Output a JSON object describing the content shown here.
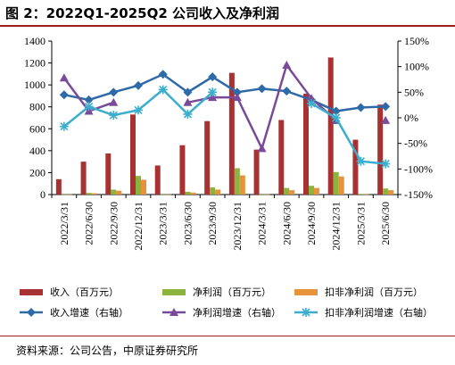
{
  "figure_title": "图 2：2022Q1-2025Q2 公司收入及净利润",
  "source": "资料来源：公司公告，中原证券研究所",
  "chart_data": {
    "type": "bar",
    "categories": [
      "2022/3/31",
      "2022/6/30",
      "2022/9/30",
      "2022/12/31",
      "2023/3/31",
      "2023/6/30",
      "2023/9/30",
      "2023/12/31",
      "2024/3/31",
      "2024/6/30",
      "2024/9/30",
      "2024/12/31",
      "2025/3/31",
      "2025/6/30"
    ],
    "left_axis": {
      "ylim": [
        0,
        1400
      ],
      "ticks": [
        0,
        200,
        400,
        600,
        800,
        1000,
        1200,
        1400
      ]
    },
    "right_axis": {
      "ylim": [
        -150,
        150
      ],
      "ticks": [
        -150,
        -100,
        -50,
        0,
        50,
        100,
        150
      ],
      "unit": "%",
      "tick_labels": [
        "-150%",
        "-100%",
        "-50%",
        "0%",
        "50%",
        "100%",
        "150%"
      ]
    },
    "bar_series": [
      {
        "name": "收入（百万元）",
        "color": "#a83232",
        "axis": "left",
        "values": [
          140,
          300,
          375,
          730,
          265,
          450,
          670,
          1110,
          410,
          680,
          920,
          1250,
          500,
          820
        ]
      },
      {
        "name": "净利润（百万元）",
        "color": "#8cb43c",
        "axis": "left",
        "values": [
          2,
          15,
          45,
          170,
          2,
          25,
          65,
          240,
          2,
          60,
          80,
          205,
          5,
          55
        ]
      },
      {
        "name": "扣非净利润（百万元）",
        "color": "#e8923c",
        "axis": "left",
        "values": [
          2,
          12,
          35,
          135,
          2,
          18,
          45,
          175,
          2,
          40,
          60,
          165,
          3,
          40
        ]
      }
    ],
    "line_series": [
      {
        "name": "收入增速（右轴）",
        "color": "#2e6aa8",
        "marker": "diamond",
        "axis": "right",
        "values": [
          45,
          35,
          50,
          63,
          85,
          50,
          80,
          50,
          57,
          52,
          35,
          13,
          20,
          22
        ]
      },
      {
        "name": "净利润增速（右轴）",
        "color": "#7a4a9a",
        "marker": "triangle",
        "axis": "right",
        "values": [
          78,
          13,
          30,
          null,
          null,
          30,
          40,
          40,
          -60,
          103,
          38,
          -5,
          null,
          -5
        ]
      },
      {
        "name": "扣非净利润增速（右轴）",
        "color": "#3aaecc",
        "marker": "star",
        "axis": "right",
        "values": [
          -17,
          22,
          5,
          15,
          55,
          7,
          50,
          null,
          null,
          null,
          28,
          0,
          -85,
          -90
        ]
      }
    ]
  }
}
